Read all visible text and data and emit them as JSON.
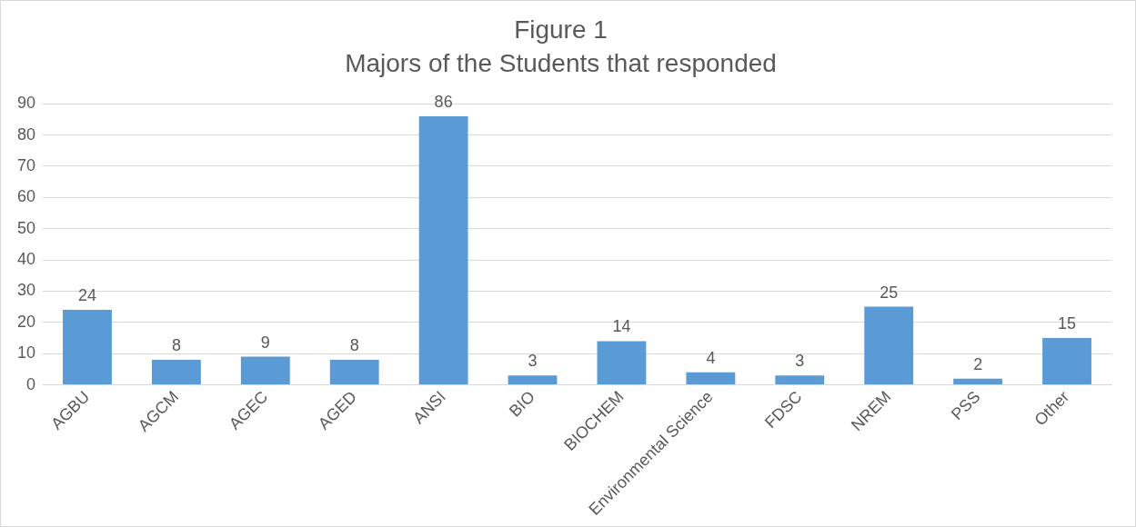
{
  "chart_data": {
    "type": "bar",
    "title": "Figure 1",
    "subtitle": "Majors of the Students that responded",
    "categories": [
      "AGBU",
      "AGCM",
      "AGEC",
      "AGED",
      "ANSI",
      "BIO",
      "BIOCHEM",
      "Environmental Science",
      "FDSC",
      "NREM",
      "PSS",
      "Other"
    ],
    "values": [
      24,
      8,
      9,
      8,
      86,
      3,
      14,
      4,
      3,
      25,
      2,
      15
    ],
    "color": "#5b9bd5",
    "ylim": [
      0,
      90
    ],
    "yticks": [
      0,
      10,
      20,
      30,
      40,
      50,
      60,
      70,
      80,
      90
    ],
    "grid": "y",
    "data_labels": true
  }
}
